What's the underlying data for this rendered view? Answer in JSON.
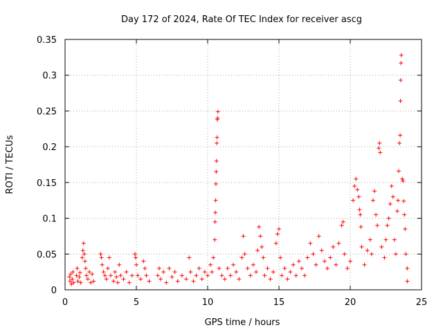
{
  "chart_data": {
    "type": "scatter",
    "title": "Day 172 of 2024, Rate Of TEC Index for receiver ascg",
    "xlabel": "GPS time / hours",
    "ylabel": "ROTI / TECUs",
    "xlim": [
      0,
      25
    ],
    "ylim": [
      0,
      0.35
    ],
    "xticks": [
      0,
      5,
      10,
      15,
      20,
      25
    ],
    "xtick_labels": [
      "0",
      "5",
      "10",
      "15",
      "20",
      "25"
    ],
    "yticks": [
      0,
      0.05,
      0.1,
      0.15,
      0.2,
      0.25,
      0.3,
      0.35
    ],
    "ytick_labels": [
      "0",
      "0.05",
      "0.1",
      "0.15",
      "0.2",
      "0.25",
      "0.3",
      "0.35"
    ],
    "grid": true,
    "marker": "+",
    "color": "#ff0000",
    "series": [
      {
        "name": "ROTI",
        "points": [
          [
            0.3,
            0.018
          ],
          [
            0.35,
            0.012
          ],
          [
            0.4,
            0.022
          ],
          [
            0.45,
            0.008
          ],
          [
            0.5,
            0.015
          ],
          [
            0.55,
            0.025
          ],
          [
            0.6,
            0.01
          ],
          [
            0.8,
            0.02
          ],
          [
            0.85,
            0.03
          ],
          [
            0.9,
            0.012
          ],
          [
            1.0,
            0.018
          ],
          [
            1.05,
            0.024
          ],
          [
            1.1,
            0.01
          ],
          [
            1.2,
            0.045
          ],
          [
            1.25,
            0.055
          ],
          [
            1.3,
            0.065
          ],
          [
            1.35,
            0.05
          ],
          [
            1.4,
            0.04
          ],
          [
            1.45,
            0.03
          ],
          [
            1.5,
            0.02
          ],
          [
            1.6,
            0.015
          ],
          [
            1.7,
            0.025
          ],
          [
            1.8,
            0.01
          ],
          [
            1.9,
            0.022
          ],
          [
            2.0,
            0.012
          ],
          [
            2.5,
            0.05
          ],
          [
            2.55,
            0.045
          ],
          [
            2.6,
            0.035
          ],
          [
            2.7,
            0.025
          ],
          [
            2.8,
            0.02
          ],
          [
            2.9,
            0.015
          ],
          [
            3.0,
            0.03
          ],
          [
            3.1,
            0.045
          ],
          [
            3.2,
            0.02
          ],
          [
            3.4,
            0.012
          ],
          [
            3.5,
            0.025
          ],
          [
            3.6,
            0.018
          ],
          [
            3.7,
            0.01
          ],
          [
            3.8,
            0.035
          ],
          [
            3.9,
            0.02
          ],
          [
            4.1,
            0.015
          ],
          [
            4.3,
            0.025
          ],
          [
            4.5,
            0.01
          ],
          [
            4.7,
            0.02
          ],
          [
            4.9,
            0.05
          ],
          [
            4.95,
            0.045
          ],
          [
            5.0,
            0.035
          ],
          [
            5.1,
            0.02
          ],
          [
            5.3,
            0.015
          ],
          [
            5.5,
            0.04
          ],
          [
            5.6,
            0.03
          ],
          [
            5.7,
            0.02
          ],
          [
            5.9,
            0.012
          ],
          [
            6.5,
            0.02
          ],
          [
            6.6,
            0.03
          ],
          [
            6.7,
            0.015
          ],
          [
            6.9,
            0.025
          ],
          [
            7.1,
            0.01
          ],
          [
            7.3,
            0.03
          ],
          [
            7.5,
            0.018
          ],
          [
            7.7,
            0.025
          ],
          [
            7.9,
            0.012
          ],
          [
            8.2,
            0.02
          ],
          [
            8.5,
            0.015
          ],
          [
            8.7,
            0.045
          ],
          [
            8.8,
            0.025
          ],
          [
            9.0,
            0.012
          ],
          [
            9.2,
            0.02
          ],
          [
            9.4,
            0.03
          ],
          [
            9.6,
            0.015
          ],
          [
            9.8,
            0.025
          ],
          [
            10.0,
            0.02
          ],
          [
            10.2,
            0.035
          ],
          [
            10.3,
            0.025
          ],
          [
            10.4,
            0.045
          ],
          [
            10.5,
            0.07
          ],
          [
            10.52,
            0.095
          ],
          [
            10.54,
            0.108
          ],
          [
            10.56,
            0.125
          ],
          [
            10.58,
            0.148
          ],
          [
            10.6,
            0.165
          ],
          [
            10.62,
            0.18
          ],
          [
            10.64,
            0.205
          ],
          [
            10.66,
            0.213
          ],
          [
            10.68,
            0.238
          ],
          [
            10.7,
            0.24
          ],
          [
            10.72,
            0.249
          ],
          [
            10.8,
            0.03
          ],
          [
            11.0,
            0.02
          ],
          [
            11.2,
            0.015
          ],
          [
            11.4,
            0.03
          ],
          [
            11.6,
            0.02
          ],
          [
            11.8,
            0.035
          ],
          [
            12.0,
            0.025
          ],
          [
            12.2,
            0.015
          ],
          [
            12.4,
            0.045
          ],
          [
            12.5,
            0.075
          ],
          [
            12.6,
            0.05
          ],
          [
            12.8,
            0.03
          ],
          [
            13.0,
            0.02
          ],
          [
            13.2,
            0.035
          ],
          [
            13.4,
            0.025
          ],
          [
            13.5,
            0.055
          ],
          [
            13.6,
            0.088
          ],
          [
            13.7,
            0.075
          ],
          [
            13.8,
            0.06
          ],
          [
            13.9,
            0.045
          ],
          [
            14.0,
            0.02
          ],
          [
            14.2,
            0.03
          ],
          [
            14.4,
            0.015
          ],
          [
            14.6,
            0.025
          ],
          [
            14.8,
            0.065
          ],
          [
            14.9,
            0.078
          ],
          [
            15.0,
            0.085
          ],
          [
            15.1,
            0.045
          ],
          [
            15.2,
            0.02
          ],
          [
            15.4,
            0.03
          ],
          [
            15.6,
            0.015
          ],
          [
            15.8,
            0.025
          ],
          [
            16.0,
            0.035
          ],
          [
            16.2,
            0.02
          ],
          [
            16.4,
            0.04
          ],
          [
            16.6,
            0.03
          ],
          [
            16.8,
            0.02
          ],
          [
            17.0,
            0.045
          ],
          [
            17.2,
            0.065
          ],
          [
            17.4,
            0.05
          ],
          [
            17.6,
            0.035
          ],
          [
            17.8,
            0.075
          ],
          [
            18.0,
            0.055
          ],
          [
            18.2,
            0.04
          ],
          [
            18.4,
            0.03
          ],
          [
            18.6,
            0.045
          ],
          [
            18.8,
            0.06
          ],
          [
            19.0,
            0.035
          ],
          [
            19.2,
            0.065
          ],
          [
            19.4,
            0.09
          ],
          [
            19.5,
            0.095
          ],
          [
            19.6,
            0.05
          ],
          [
            19.8,
            0.03
          ],
          [
            20.0,
            0.04
          ],
          [
            20.2,
            0.125
          ],
          [
            20.3,
            0.145
          ],
          [
            20.4,
            0.155
          ],
          [
            20.5,
            0.14
          ],
          [
            20.6,
            0.13
          ],
          [
            20.65,
            0.112
          ],
          [
            20.7,
            0.105
          ],
          [
            20.75,
            0.088
          ],
          [
            20.8,
            0.06
          ],
          [
            21.0,
            0.035
          ],
          [
            21.2,
            0.055
          ],
          [
            21.4,
            0.07
          ],
          [
            21.5,
            0.05
          ],
          [
            21.6,
            0.125
          ],
          [
            21.7,
            0.138
          ],
          [
            21.8,
            0.105
          ],
          [
            21.9,
            0.09
          ],
          [
            22.0,
            0.198
          ],
          [
            22.05,
            0.205
          ],
          [
            22.1,
            0.192
          ],
          [
            22.2,
            0.06
          ],
          [
            22.4,
            0.045
          ],
          [
            22.5,
            0.07
          ],
          [
            22.6,
            0.09
          ],
          [
            22.7,
            0.1
          ],
          [
            22.8,
            0.12
          ],
          [
            22.9,
            0.145
          ],
          [
            23.0,
            0.13
          ],
          [
            23.1,
            0.07
          ],
          [
            23.2,
            0.05
          ],
          [
            23.3,
            0.11
          ],
          [
            23.35,
            0.125
          ],
          [
            23.4,
            0.166
          ],
          [
            23.45,
            0.205
          ],
          [
            23.5,
            0.216
          ],
          [
            23.52,
            0.264
          ],
          [
            23.54,
            0.293
          ],
          [
            23.56,
            0.317
          ],
          [
            23.58,
            0.328
          ],
          [
            23.65,
            0.155
          ],
          [
            23.7,
            0.152
          ],
          [
            23.75,
            0.124
          ],
          [
            23.8,
            0.105
          ],
          [
            23.85,
            0.085
          ],
          [
            23.9,
            0.05
          ],
          [
            24.0,
            0.03
          ],
          [
            24.0,
            0.012
          ]
        ]
      }
    ]
  }
}
